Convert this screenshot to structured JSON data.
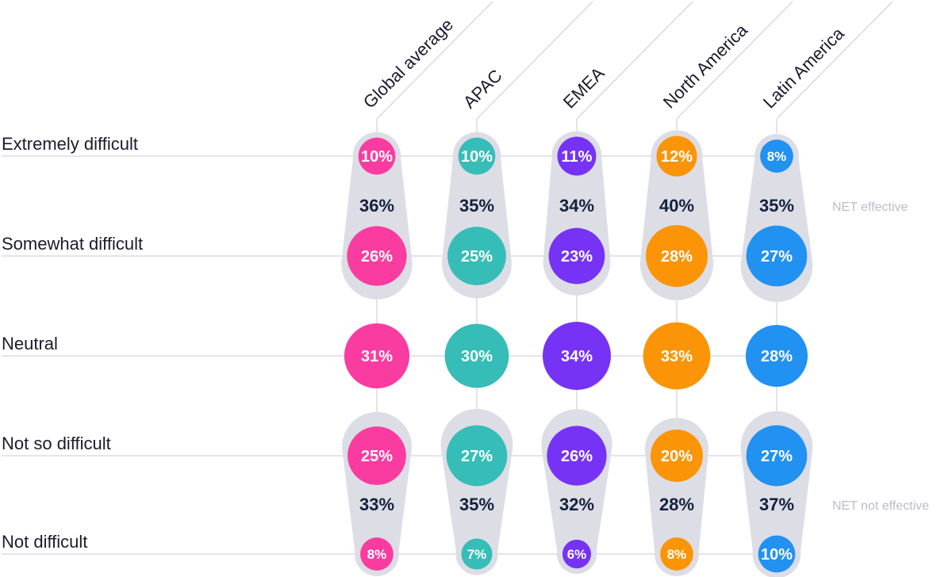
{
  "chart_data": {
    "type": "bubble-matrix",
    "rows": [
      "Extremely difficult",
      "Somewhat difficult",
      "Neutral",
      "Not so difficult",
      "Not difficult"
    ],
    "columns": [
      "Global average",
      "APAC",
      "EMEA",
      "North America",
      "Latin America"
    ],
    "values": [
      [
        10,
        10,
        11,
        12,
        8
      ],
      [
        26,
        25,
        23,
        28,
        27
      ],
      [
        31,
        30,
        34,
        33,
        28
      ],
      [
        25,
        27,
        26,
        20,
        27
      ],
      [
        8,
        7,
        6,
        8,
        10
      ]
    ],
    "value_suffix": "%",
    "net_groups": [
      {
        "name": "NET effective",
        "rows": [
          0,
          1
        ],
        "values": [
          36,
          35,
          34,
          40,
          35
        ]
      },
      {
        "name": "NET not effective",
        "rows": [
          3,
          4
        ],
        "values": [
          33,
          35,
          32,
          28,
          37
        ]
      }
    ]
  },
  "colors": {
    "series": [
      "#fa3ca0",
      "#36bdb7",
      "#7633f5",
      "#fb9507",
      "#2191f2"
    ],
    "capsule": "#dcdde5",
    "gridline": "#c8c9d3",
    "net_caption": "#b9bcc9"
  }
}
